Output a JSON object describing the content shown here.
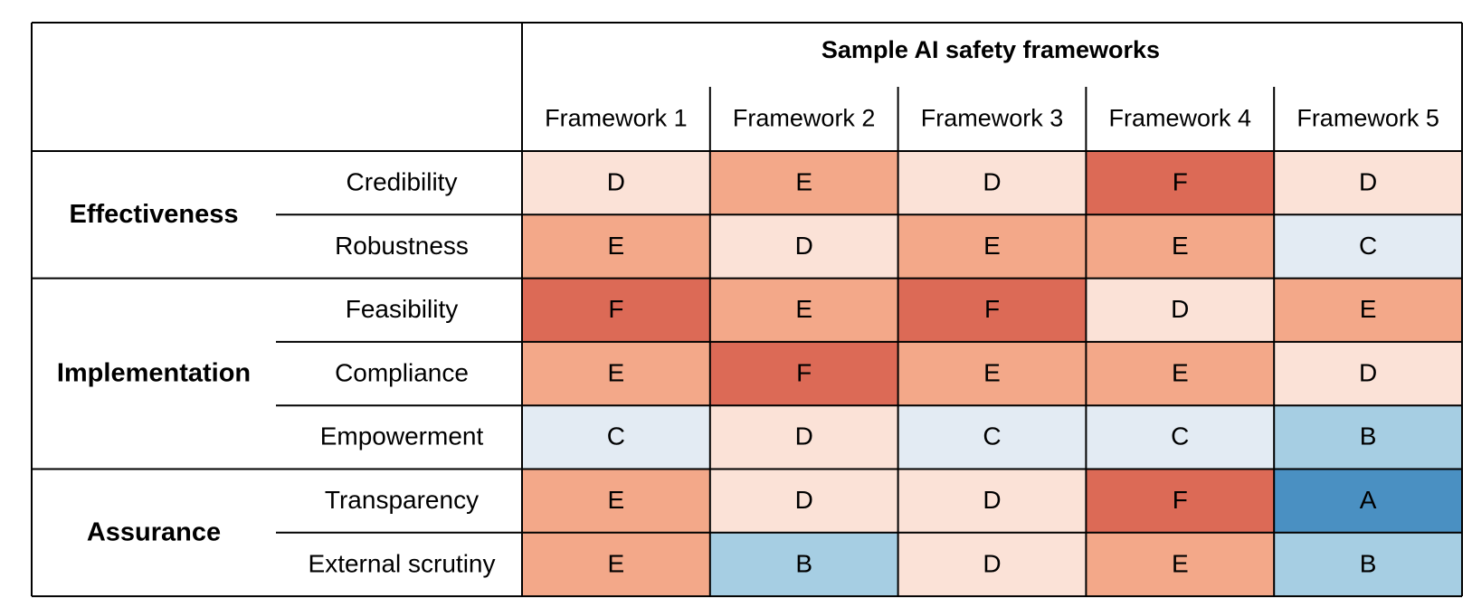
{
  "chart_data": {
    "type": "heatmap",
    "title": "Sample AI safety frameworks",
    "columns": [
      "Framework 1",
      "Framework 2",
      "Framework 3",
      "Framework 4",
      "Framework 5"
    ],
    "groups": [
      {
        "label": "Effectiveness",
        "rows": [
          "Credibility",
          "Robustness"
        ]
      },
      {
        "label": "Implementation",
        "rows": [
          "Feasibility",
          "Compliance",
          "Empowerment"
        ]
      },
      {
        "label": "Assurance",
        "rows": [
          "Transparency",
          "External scrutiny"
        ]
      }
    ],
    "values": [
      [
        "D",
        "E",
        "D",
        "F",
        "D"
      ],
      [
        "E",
        "D",
        "E",
        "E",
        "C"
      ],
      [
        "F",
        "E",
        "F",
        "D",
        "E"
      ],
      [
        "E",
        "F",
        "E",
        "E",
        "D"
      ],
      [
        "C",
        "D",
        "C",
        "C",
        "B"
      ],
      [
        "E",
        "D",
        "D",
        "F",
        "A"
      ],
      [
        "E",
        "B",
        "D",
        "E",
        "B"
      ]
    ],
    "grade_colors": {
      "A": "#4a90c2",
      "B": "#a6cee3",
      "C": "#e3ebf3",
      "D": "#fbe2d7",
      "E": "#f3a889",
      "F": "#dc6a56"
    }
  }
}
